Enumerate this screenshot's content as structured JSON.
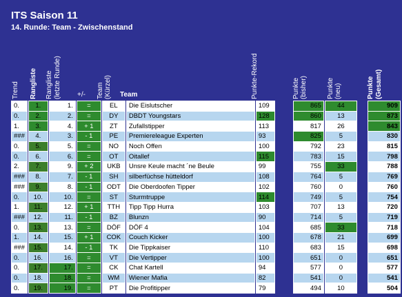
{
  "header": {
    "title": "ITS Saison 11",
    "subtitle": "14. Runde: Team - Zwischenstand"
  },
  "columns": {
    "trend": "Trend",
    "rangliste": "Rangliste",
    "rangliste_letzte_1": "Rangliste",
    "rangliste_letzte_2": "(letzte Runde)",
    "diff": "+/-",
    "team_kuerzel_1": "Team",
    "team_kuerzel_2": "(Kürzel)",
    "team": "Team",
    "punkte_rekord": "Punkte-Rekord",
    "punkte_bisher_1": "Punkte",
    "punkte_bisher_2": "(bisher)",
    "punkte_neu_1": "Punkte",
    "punkte_neu_2": "(neu)",
    "punkte_gesamt_1": "Punkte",
    "punkte_gesamt_2": "(Gesamt)"
  },
  "rows": [
    {
      "trend": "0.",
      "rank": "1.",
      "prev": "1.",
      "diff": "=",
      "kz": "EL",
      "team": "Die Eislutscher",
      "rekord": "109",
      "bisher": "865",
      "neu": "44",
      "gesamt": "909",
      "rank_hi": true,
      "bisher_hi": true,
      "neu_hi": true,
      "gesamt_hi": true
    },
    {
      "trend": "0.",
      "rank": "2.",
      "prev": "2.",
      "diff": "=",
      "kz": "DY",
      "team": "DBDT Youngstars",
      "rekord": "128",
      "bisher": "860",
      "neu": "13",
      "gesamt": "873",
      "rank_hi": true,
      "rekord_hi": true,
      "bisher_hi": true,
      "gesamt_hi": true
    },
    {
      "trend": "1.",
      "rank": "3.",
      "prev": "4.",
      "diff": "+ 1",
      "kz": "ZT",
      "team": "Zufallstipper",
      "rekord": "113",
      "bisher": "817",
      "neu": "26",
      "gesamt": "843",
      "rank_hi": true,
      "gesamt_hi": true
    },
    {
      "trend": "###",
      "rank": "4.",
      "prev": "3.",
      "diff": "- 1",
      "kz": "PE",
      "team": "Premiereleague Experten",
      "rekord": "93",
      "bisher": "825",
      "neu": "5",
      "gesamt": "830",
      "bisher_hi": true
    },
    {
      "trend": "0.",
      "rank": "5.",
      "prev": "5.",
      "diff": "=",
      "kz": "NO",
      "team": "Noch Offen",
      "rekord": "100",
      "bisher": "792",
      "neu": "23",
      "gesamt": "815"
    },
    {
      "trend": "0.",
      "rank": "6.",
      "prev": "6.",
      "diff": "=",
      "kz": "OT",
      "team": "Oitallef",
      "rekord": "115",
      "bisher": "783",
      "neu": "15",
      "gesamt": "798",
      "rekord_hi": true
    },
    {
      "trend": "2.",
      "rank": "7.",
      "prev": "9.",
      "diff": "+ 2",
      "kz": "UKB",
      "team": "Unsre Keule macht ´ne Beule",
      "rekord": "99",
      "bisher": "755",
      "neu": "33",
      "gesamt": "788",
      "neu_hi": true
    },
    {
      "trend": "###",
      "rank": "8.",
      "prev": "7.",
      "diff": "- 1",
      "kz": "SH",
      "team": "silberfüchse hütteldorf",
      "rekord": "108",
      "bisher": "764",
      "neu": "5",
      "gesamt": "769"
    },
    {
      "trend": "###",
      "rank": "9.",
      "prev": "8.",
      "diff": "- 1",
      "kz": "ODT",
      "team": "Die Oberdoofen Tipper",
      "rekord": "102",
      "bisher": "760",
      "neu": "0",
      "gesamt": "760"
    },
    {
      "trend": "0.",
      "rank": "10.",
      "prev": "10.",
      "diff": "=",
      "kz": "ST",
      "team": "Sturmtruppe",
      "rekord": "114",
      "bisher": "749",
      "neu": "5",
      "gesamt": "754",
      "rekord_hi": true
    },
    {
      "trend": "1.",
      "rank": "11.",
      "prev": "12.",
      "diff": "+ 1",
      "kz": "TTH",
      "team": "Tipp Tipp Hurra",
      "rekord": "103",
      "bisher": "707",
      "neu": "13",
      "gesamt": "720"
    },
    {
      "trend": "###",
      "rank": "12.",
      "prev": "11.",
      "diff": "- 1",
      "kz": "BZ",
      "team": "Blunzn",
      "rekord": "90",
      "bisher": "714",
      "neu": "5",
      "gesamt": "719"
    },
    {
      "trend": "0.",
      "rank": "13.",
      "prev": "13.",
      "diff": "=",
      "kz": "DÖF",
      "team": "DÖF 4",
      "rekord": "104",
      "bisher": "685",
      "neu": "33",
      "gesamt": "718",
      "neu_hi": true
    },
    {
      "trend": "1.",
      "rank": "14.",
      "prev": "15.",
      "diff": "+ 1",
      "kz": "COK",
      "team": "Couch Kicker",
      "rekord": "100",
      "bisher": "678",
      "neu": "21",
      "gesamt": "699"
    },
    {
      "trend": "###",
      "rank": "15.",
      "prev": "14.",
      "diff": "- 1",
      "kz": "TK",
      "team": "Die Tippkaiser",
      "rekord": "110",
      "bisher": "683",
      "neu": "15",
      "gesamt": "698"
    },
    {
      "trend": "0.",
      "rank": "16.",
      "prev": "16.",
      "diff": "=",
      "kz": "VT",
      "team": "Die Vertipper",
      "rekord": "100",
      "bisher": "651",
      "neu": "0",
      "gesamt": "651"
    },
    {
      "trend": "0.",
      "rank": "17.",
      "prev": "17.",
      "diff": "=",
      "kz": "CK",
      "team": "Chat Kartell",
      "rekord": "94",
      "bisher": "577",
      "neu": "0",
      "gesamt": "577",
      "prev_hi": true
    },
    {
      "trend": "0.",
      "rank": "18.",
      "prev": "18.",
      "diff": "=",
      "kz": "WM",
      "team": "Wiener Mafia",
      "rekord": "82",
      "bisher": "541",
      "neu": "0",
      "gesamt": "541",
      "prev_hi": true
    },
    {
      "trend": "0.",
      "rank": "19.",
      "prev": "19.",
      "diff": "=",
      "kz": "PT",
      "team": "Die Profitipper",
      "rekord": "79",
      "bisher": "494",
      "neu": "10",
      "gesamt": "504",
      "prev_hi": true
    }
  ],
  "colors": {
    "background": "#2e3192",
    "highlight_green": "#2e8b2e",
    "row_alt": "#b7d6ef",
    "row": "#ffffff"
  }
}
